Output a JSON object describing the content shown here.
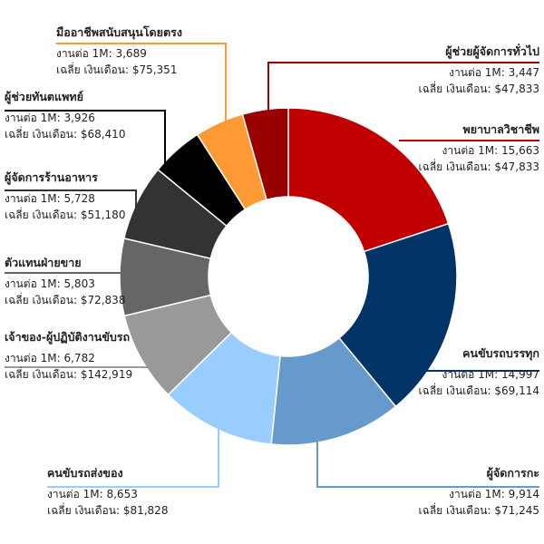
{
  "chart_data": {
    "type": "donut",
    "categories": [
      "พยาบาลวิชาชีพ",
      "คนขับรถบรรทุก",
      "ผู้จัดการกะ",
      "คนขับรถส่งของ",
      "เจ้าของ-ผู้ปฏิบัติงานขับรถ",
      "ตัวแทนฝ่ายขาย",
      "ผู้จัดการร้านอาหาร",
      "ผู้ช่วยทันตแพทย์",
      "มืออาชีพสนับสนุนโดยตรง",
      "ผู้ช่วยผู้จัดการทั่วไป"
    ],
    "values": [
      15663,
      14997,
      9914,
      8653,
      6782,
      5803,
      5728,
      3926,
      3689,
      3447
    ],
    "value_labels": [
      "15,663",
      "14,997",
      "9,914",
      "8,653",
      "6,782",
      "5,803",
      "5,728",
      "3,926",
      "3,689",
      "3,447"
    ],
    "value_prefix": "งานต่อ 1M:",
    "salary_prefix": "เฉลี่ย เงินเดือน:",
    "salaries": [
      "$47,833",
      "$69,114",
      "$71,245",
      "$81,828",
      "$142,919",
      "$72,838",
      "$51,180",
      "$68,410",
      "$75,351",
      "$47,833"
    ],
    "colors": [
      "#c00000",
      "#003366",
      "#6699cc",
      "#99ccff",
      "#999999",
      "#666666",
      "#333333",
      "#000000",
      "#ff9933",
      "#990000"
    ]
  }
}
